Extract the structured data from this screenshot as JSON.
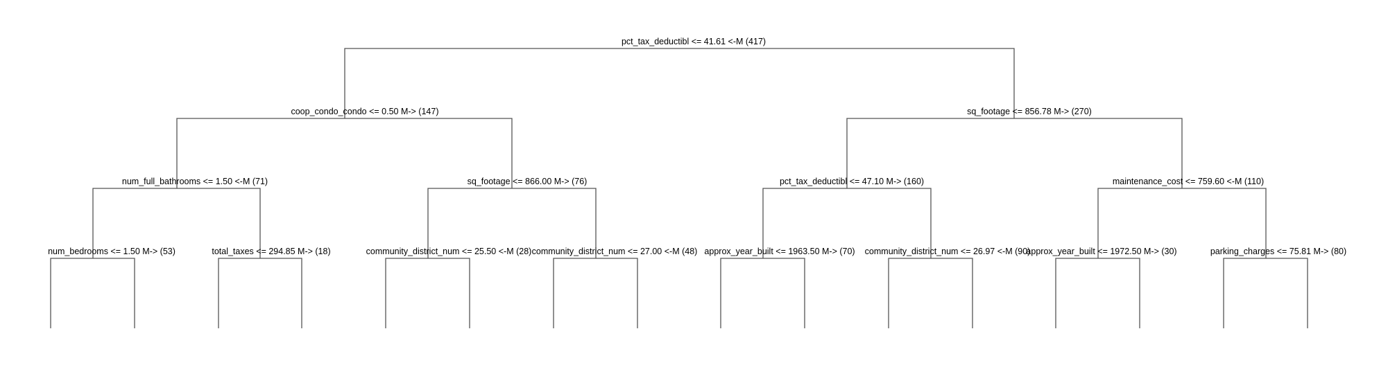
{
  "diagram": {
    "type": "model tree (M5P style)",
    "nodes": [
      {
        "id": "root",
        "label": "pct_tax_deductibl <= 41.61 <-M (417)"
      },
      {
        "id": "n-l",
        "label": "coop_condo_condo <= 0.50 M-> (147)"
      },
      {
        "id": "n-r",
        "label": "sq_footage <= 856.78 M-> (270)"
      },
      {
        "id": "n-ll",
        "label": "num_full_bathrooms <= 1.50 <-M (71)"
      },
      {
        "id": "n-lr",
        "label": "sq_footage <= 866.00 M-> (76)"
      },
      {
        "id": "n-rl",
        "label": "pct_tax_deductibl <= 47.10 M-> (160)"
      },
      {
        "id": "n-rr",
        "label": "maintenance_cost <= 759.60 <-M (110)"
      },
      {
        "id": "n-lll",
        "label": "num_bedrooms <= 1.50 M-> (53)"
      },
      {
        "id": "n-llr",
        "label": "total_taxes <= 294.85 M-> (18)"
      },
      {
        "id": "n-lrl",
        "label": "community_district_num <= 25.50 <-M (28)"
      },
      {
        "id": "n-lrr",
        "label": "community_district_num <= 27.00 <-M (48)"
      },
      {
        "id": "n-rll",
        "label": "approx_year_built <= 1963.50 M-> (70)"
      },
      {
        "id": "n-rlr",
        "label": "community_district_num <= 26.97 <-M (90)"
      },
      {
        "id": "n-rrl",
        "label": "approx_year_built <= 1972.50 M-> (30)"
      },
      {
        "id": "n-rrr",
        "label": "parking_charges <= 75.81 M-> (80)"
      }
    ]
  }
}
